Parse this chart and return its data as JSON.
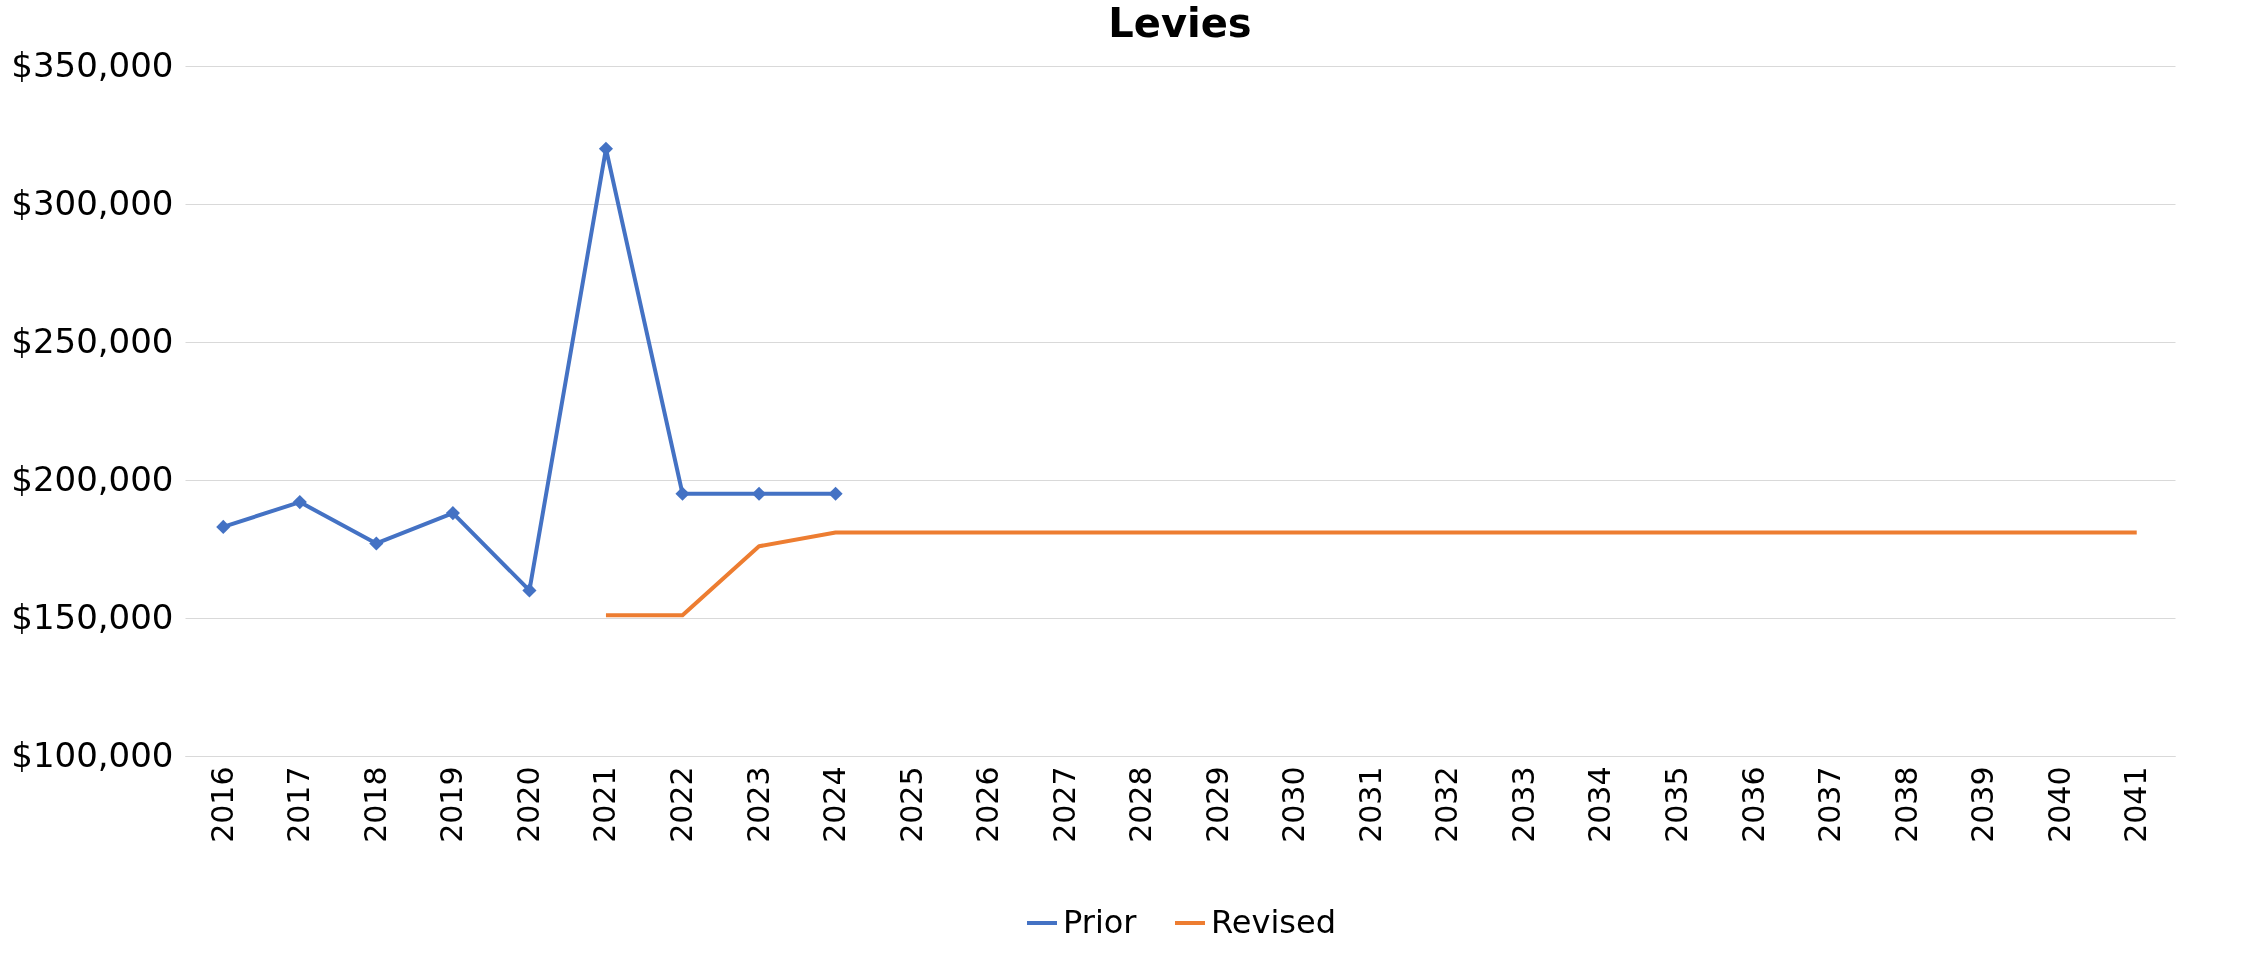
{
  "chart_data": {
    "type": "line",
    "title": "Levies",
    "categories": [
      "2016",
      "2017",
      "2018",
      "2019",
      "2020",
      "2021",
      "2022",
      "2023",
      "2024",
      "2025",
      "2026",
      "2027",
      "2028",
      "2029",
      "2030",
      "2031",
      "2032",
      "2033",
      "2034",
      "2035",
      "2036",
      "2037",
      "2038",
      "2039",
      "2040",
      "2041"
    ],
    "series": [
      {
        "name": "Prior",
        "color": "#4472c4",
        "marker": "diamond",
        "values": [
          183000,
          192000,
          177000,
          188000,
          160000,
          320000,
          195000,
          195000,
          195000,
          null,
          null,
          null,
          null,
          null,
          null,
          null,
          null,
          null,
          null,
          null,
          null,
          null,
          null,
          null,
          null,
          null
        ]
      },
      {
        "name": "Revised",
        "color": "#ed7d31",
        "values": [
          null,
          null,
          null,
          null,
          null,
          151000,
          151000,
          176000,
          181000,
          181000,
          181000,
          181000,
          181000,
          181000,
          181000,
          181000,
          181000,
          181000,
          181000,
          181000,
          181000,
          181000,
          181000,
          181000,
          181000,
          181000
        ]
      }
    ],
    "ylim": [
      100000,
      350000
    ],
    "yticks": [
      {
        "value": 100000,
        "label": "$100,000"
      },
      {
        "value": 150000,
        "label": "$150,000"
      },
      {
        "value": 200000,
        "label": "$200,000"
      },
      {
        "value": 250000,
        "label": "$250,000"
      },
      {
        "value": 300000,
        "label": "$300,000"
      },
      {
        "value": 350000,
        "label": "$350,000"
      }
    ],
    "grid": "y",
    "legend": "bottom",
    "line_style": "solid"
  }
}
